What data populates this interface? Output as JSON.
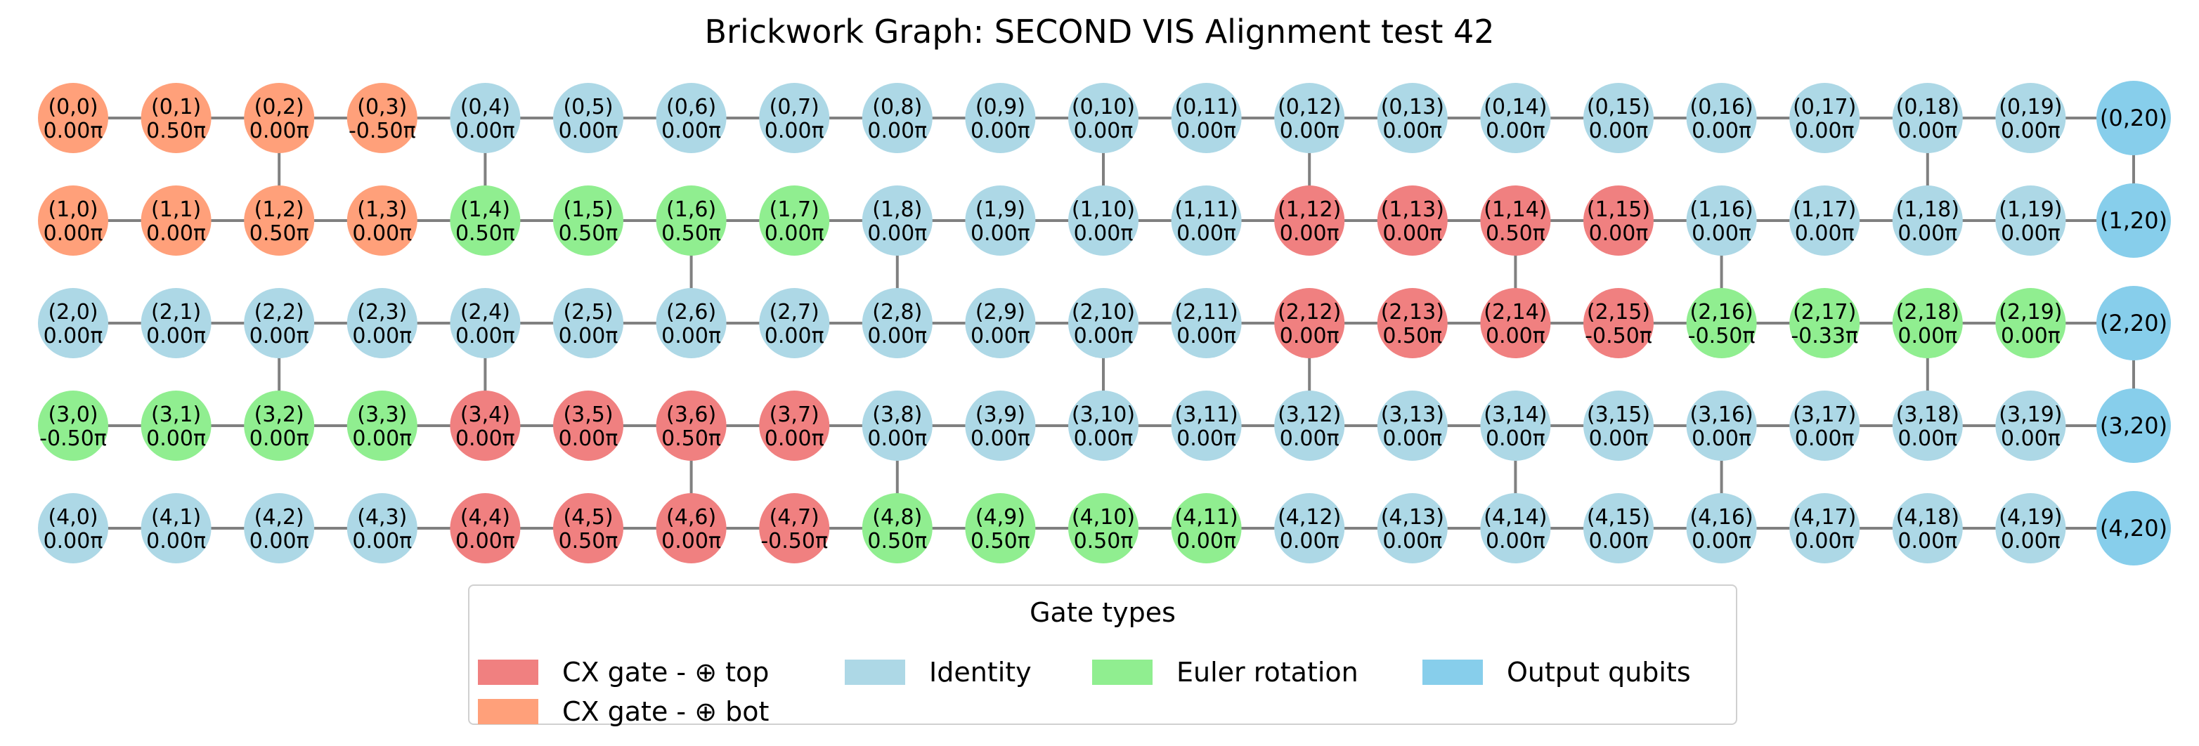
{
  "title": "Brickwork Graph: SECOND VIS Alignment test 42",
  "colors": {
    "cx_top": "#f08080",
    "cx_bot": "#ffa07a",
    "identity": "#add8e6",
    "euler": "#90ee90",
    "output": "#87ceeb",
    "edge": "#808080"
  },
  "grid": {
    "rows": 5,
    "cols": 20,
    "output_col_index": 20,
    "node_types": [
      "BBBBIIIIIIIIIIIIIIII",
      "BBBBEEEEIIIIRRRRIIII",
      "IIIIIIIIIIIIRRRREEEE",
      "EEEERRRRIIIIIIIIIIII",
      "IIIIRRRREEEEIIIIIIII"
    ],
    "angles": [
      [
        "0.00π",
        "0.50π",
        "0.00π",
        "-0.50π",
        "0.00π",
        "0.00π",
        "0.00π",
        "0.00π",
        "0.00π",
        "0.00π",
        "0.00π",
        "0.00π",
        "0.00π",
        "0.00π",
        "0.00π",
        "0.00π",
        "0.00π",
        "0.00π",
        "0.00π",
        "0.00π"
      ],
      [
        "0.00π",
        "0.00π",
        "0.50π",
        "0.00π",
        "0.50π",
        "0.50π",
        "0.50π",
        "0.00π",
        "0.00π",
        "0.00π",
        "0.00π",
        "0.00π",
        "0.00π",
        "0.00π",
        "0.50π",
        "0.00π",
        "0.00π",
        "0.00π",
        "0.00π",
        "0.00π"
      ],
      [
        "0.00π",
        "0.00π",
        "0.00π",
        "0.00π",
        "0.00π",
        "0.00π",
        "0.00π",
        "0.00π",
        "0.00π",
        "0.00π",
        "0.00π",
        "0.00π",
        "0.00π",
        "0.50π",
        "0.00π",
        "-0.50π",
        "-0.50π",
        "-0.33π",
        "0.00π",
        "0.00π"
      ],
      [
        "-0.50π",
        "0.00π",
        "0.00π",
        "0.00π",
        "0.00π",
        "0.00π",
        "0.50π",
        "0.00π",
        "0.00π",
        "0.00π",
        "0.00π",
        "0.00π",
        "0.00π",
        "0.00π",
        "0.00π",
        "0.00π",
        "0.00π",
        "0.00π",
        "0.00π",
        "0.00π"
      ],
      [
        "0.00π",
        "0.00π",
        "0.00π",
        "0.00π",
        "0.00π",
        "0.50π",
        "0.00π",
        "-0.50π",
        "0.50π",
        "0.50π",
        "0.50π",
        "0.00π",
        "0.00π",
        "0.00π",
        "0.00π",
        "0.00π",
        "0.00π",
        "0.00π",
        "0.00π",
        "0.00π"
      ]
    ],
    "vertical_links": [
      {
        "col": 2,
        "rows": [
          0,
          1
        ]
      },
      {
        "col": 4,
        "rows": [
          0,
          1
        ]
      },
      {
        "col": 10,
        "rows": [
          0,
          1
        ]
      },
      {
        "col": 12,
        "rows": [
          0,
          1
        ]
      },
      {
        "col": 18,
        "rows": [
          0,
          1
        ]
      },
      {
        "col": 20,
        "rows": [
          0,
          1
        ]
      },
      {
        "col": 6,
        "rows": [
          1,
          2
        ]
      },
      {
        "col": 8,
        "rows": [
          1,
          2
        ]
      },
      {
        "col": 14,
        "rows": [
          1,
          2
        ]
      },
      {
        "col": 16,
        "rows": [
          1,
          2
        ]
      },
      {
        "col": 2,
        "rows": [
          2,
          3
        ]
      },
      {
        "col": 4,
        "rows": [
          2,
          3
        ]
      },
      {
        "col": 10,
        "rows": [
          2,
          3
        ]
      },
      {
        "col": 12,
        "rows": [
          2,
          3
        ]
      },
      {
        "col": 18,
        "rows": [
          2,
          3
        ]
      },
      {
        "col": 20,
        "rows": [
          2,
          3
        ]
      },
      {
        "col": 6,
        "rows": [
          3,
          4
        ]
      },
      {
        "col": 8,
        "rows": [
          3,
          4
        ]
      },
      {
        "col": 14,
        "rows": [
          3,
          4
        ]
      },
      {
        "col": 16,
        "rows": [
          3,
          4
        ]
      }
    ]
  },
  "legend": {
    "title": "Gate types",
    "items": [
      {
        "key": "cx_top",
        "label": "CX gate - ⊕ top"
      },
      {
        "key": "identity",
        "label": "Identity"
      },
      {
        "key": "euler",
        "label": "Euler rotation"
      },
      {
        "key": "output",
        "label": "Output qubits"
      },
      {
        "key": "cx_bot",
        "label": "CX gate - ⊕ bot"
      }
    ]
  }
}
